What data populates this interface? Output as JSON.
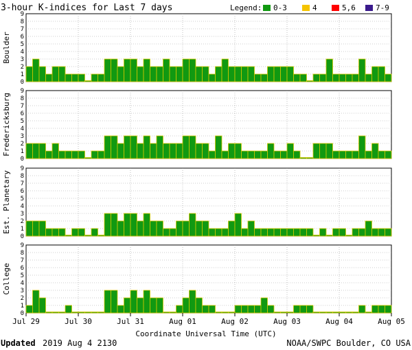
{
  "chart_data": {
    "type": "bar",
    "title": "3-hour K-indices for Last 7 days",
    "xlabel": "Coordinate Universal Time (UTC)",
    "ylim": [
      0,
      9
    ],
    "yticks": [
      0,
      1,
      2,
      3,
      4,
      5,
      6,
      7,
      8,
      9
    ],
    "x_ticks": [
      "Jul 29",
      "Jul 30",
      "Jul 31",
      "Aug 01",
      "Aug 02",
      "Aug 03",
      "Aug 04",
      "Aug 05"
    ],
    "legend": {
      "label": "Legend:",
      "placement": "top-right",
      "items": [
        {
          "label": "0-3",
          "color": "#119911"
        },
        {
          "label": "4",
          "color": "#f5c400"
        },
        {
          "label": "5,6",
          "color": "#ff0000"
        },
        {
          "label": "7-9",
          "color": "#3a1a8c"
        }
      ]
    },
    "bar_color": "#119911",
    "bar_outline": "#d8c800",
    "grid": true,
    "panels": [
      {
        "name": "Boulder",
        "values": [
          2,
          3,
          2,
          1,
          2,
          2,
          1,
          1,
          1,
          0,
          1,
          1,
          3,
          3,
          2,
          3,
          3,
          2,
          3,
          2,
          2,
          3,
          2,
          2,
          3,
          3,
          2,
          2,
          1,
          2,
          3,
          2,
          2,
          2,
          2,
          1,
          1,
          2,
          2,
          2,
          2,
          1,
          1,
          0,
          1,
          1,
          3,
          1,
          1,
          1,
          1,
          3,
          1,
          2,
          2,
          1,
          0
        ]
      },
      {
        "name": "Fredericksburg",
        "values": [
          2,
          2,
          2,
          1,
          2,
          1,
          1,
          1,
          1,
          0,
          1,
          1,
          3,
          3,
          2,
          3,
          3,
          2,
          3,
          2,
          3,
          2,
          2,
          2,
          3,
          3,
          2,
          2,
          1,
          3,
          1,
          2,
          2,
          1,
          1,
          1,
          1,
          2,
          1,
          1,
          2,
          1,
          0,
          0,
          2,
          2,
          2,
          1,
          1,
          1,
          1,
          3,
          1,
          2,
          1,
          1,
          0
        ]
      },
      {
        "name": "Est. Planetary",
        "values": [
          2,
          2,
          2,
          1,
          1,
          1,
          0,
          1,
          1,
          0,
          1,
          0,
          3,
          3,
          2,
          3,
          3,
          2,
          3,
          2,
          2,
          1,
          1,
          2,
          2,
          3,
          2,
          2,
          1,
          1,
          1,
          2,
          3,
          1,
          2,
          1,
          1,
          1,
          1,
          1,
          1,
          1,
          1,
          1,
          0,
          1,
          0,
          1,
          1,
          0,
          1,
          1,
          2,
          1,
          1,
          1,
          0,
          0
        ]
      },
      {
        "name": "College",
        "values": [
          1,
          3,
          2,
          0,
          0,
          0,
          1,
          0,
          0,
          0,
          0,
          0,
          3,
          3,
          1,
          2,
          3,
          2,
          3,
          2,
          2,
          0,
          0,
          1,
          2,
          3,
          2,
          1,
          1,
          0,
          0,
          0,
          1,
          1,
          1,
          1,
          2,
          1,
          0,
          0,
          0,
          1,
          1,
          1,
          0,
          0,
          0,
          0,
          0,
          0,
          0,
          1,
          0,
          1,
          1,
          1,
          0,
          0
        ]
      }
    ]
  },
  "footer": {
    "updated_label": "Updated",
    "updated_value": "2019 Aug  4 2130",
    "credit": "NOAA/SWPC Boulder, CO USA"
  }
}
